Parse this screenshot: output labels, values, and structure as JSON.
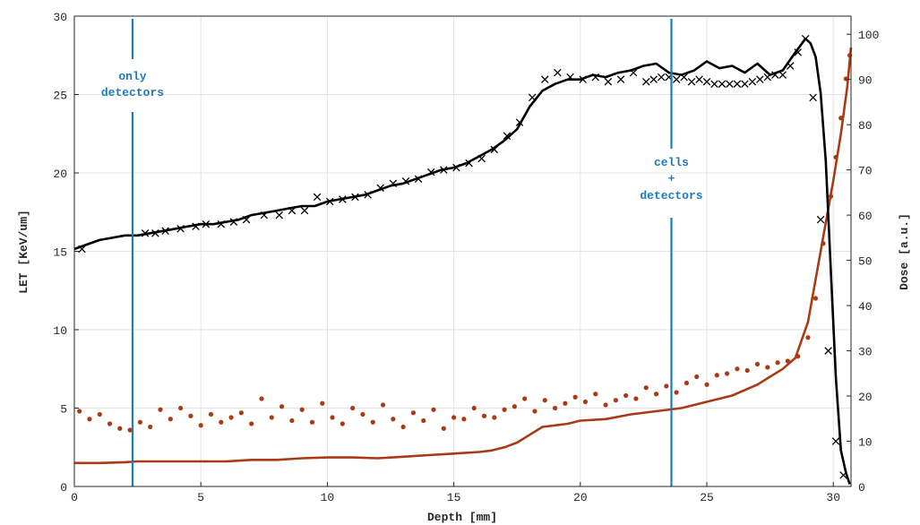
{
  "chart_data": {
    "type": "line",
    "title": "",
    "xlabel": "Depth [mm]",
    "ylabel_left": "LET [KeV/um]",
    "ylabel_right": "Dose [a.u.]",
    "xlim": [
      0,
      30.7
    ],
    "ylim_left": [
      0,
      30
    ],
    "ylim_right": [
      0,
      104
    ],
    "x_ticks": [
      "0",
      "5",
      "10",
      "15",
      "20",
      "25",
      "30"
    ],
    "y_left_ticks": [
      "0",
      "5",
      "10",
      "15",
      "20",
      "25",
      "30"
    ],
    "y_right_ticks": [
      "0",
      "10",
      "20",
      "30",
      "40",
      "50",
      "60",
      "70",
      "80",
      "90",
      "100"
    ],
    "grid": true,
    "annotations": {
      "only_detectors": {
        "lines": [
          "only",
          "detectors"
        ],
        "x": 2.3
      },
      "cells_detectors": {
        "lines": [
          "cells",
          "+",
          "detectors"
        ],
        "x": 23.6
      }
    },
    "series": [
      {
        "axis": "right",
        "style": "line",
        "color": "#000000",
        "x": [
          0,
          0.5,
          1,
          1.5,
          2,
          2.5,
          3,
          3.5,
          4,
          4.5,
          5,
          5.5,
          6,
          6.5,
          7,
          7.5,
          8,
          8.5,
          9,
          9.5,
          10,
          10.5,
          11,
          11.5,
          12,
          12.5,
          13,
          13.5,
          14,
          14.5,
          15,
          15.5,
          16,
          16.5,
          17,
          17.5,
          18,
          18.5,
          19,
          19.5,
          20,
          20.5,
          21,
          21.5,
          22,
          22.5,
          23,
          23.5,
          24,
          24.5,
          25,
          25.5,
          26,
          26.5,
          27,
          27.5,
          28,
          28.5,
          28.9,
          29.1,
          29.3,
          29.5,
          29.7,
          29.9,
          30.1,
          30.3,
          30.5,
          30.65
        ],
        "y": [
          52.5,
          53.5,
          54.5,
          55,
          55.5,
          55.5,
          56,
          56.5,
          57,
          57.5,
          58,
          58,
          58.5,
          59,
          60,
          60.5,
          61,
          61.5,
          62,
          62,
          63,
          63.5,
          64,
          64.5,
          65.5,
          66.5,
          67,
          68,
          69,
          70,
          70.5,
          71.5,
          73,
          74.5,
          76.5,
          79,
          84,
          87.5,
          89,
          90,
          90,
          91,
          90.5,
          91.5,
          92,
          93,
          93.5,
          91.5,
          91,
          92,
          94,
          92.5,
          93,
          91.5,
          93.5,
          91,
          92,
          96,
          99,
          98,
          95,
          87,
          72,
          48,
          24,
          8,
          3,
          0.5
        ]
      },
      {
        "axis": "right",
        "style": "marker-x",
        "color": "#000000",
        "x": [
          0.3,
          2.8,
          3.2,
          3.6,
          4.2,
          4.8,
          5.2,
          5.8,
          6.3,
          6.8,
          7.5,
          8.1,
          8.6,
          9.1,
          9.6,
          10.1,
          10.6,
          11.1,
          11.6,
          12.1,
          12.6,
          13.1,
          13.6,
          14.1,
          14.6,
          15.1,
          15.6,
          16.1,
          16.6,
          17.1,
          17.6,
          18.1,
          18.6,
          19.1,
          19.6,
          20.1,
          20.6,
          21.1,
          21.6,
          22.1,
          22.6,
          22.9,
          23.2,
          23.5,
          23.8,
          24.1,
          24.4,
          24.7,
          25.0,
          25.3,
          25.6,
          25.9,
          26.2,
          26.5,
          26.8,
          27.1,
          27.4,
          27.7,
          28.0,
          28.3,
          28.6,
          28.9,
          29.2,
          29.5,
          29.8,
          30.1,
          30.4
        ],
        "y": [
          52.5,
          56,
          56,
          56.5,
          57,
          57.5,
          58,
          58,
          58.5,
          59,
          60,
          60,
          61,
          61,
          64,
          63,
          63.5,
          64,
          64.5,
          66,
          67,
          67.5,
          68,
          69.5,
          70,
          70.5,
          71.5,
          72.5,
          74.5,
          77.5,
          80.5,
          86,
          90,
          91.5,
          90.5,
          90,
          90.5,
          89.5,
          90,
          91.5,
          89.5,
          90,
          90.5,
          90.5,
          90,
          90.5,
          89.5,
          90,
          89.5,
          89,
          89,
          89,
          89,
          89,
          89.5,
          90,
          90.5,
          91,
          91,
          93,
          96,
          99,
          86,
          59,
          30,
          10,
          2.5
        ]
      },
      {
        "axis": "left",
        "style": "line",
        "color": "#a93a15",
        "x": [
          0,
          1,
          2,
          2.5,
          3,
          4,
          5,
          6,
          7,
          8,
          9,
          10,
          11,
          12,
          13,
          14,
          15,
          16,
          16.5,
          17,
          17.5,
          18,
          18.5,
          19,
          19.5,
          20,
          21,
          22,
          23,
          24,
          25,
          26,
          27,
          27.5,
          28,
          28.5,
          29,
          29.5,
          30,
          30.3,
          30.55,
          30.7
        ],
        "y": [
          1.5,
          1.5,
          1.55,
          1.6,
          1.6,
          1.6,
          1.6,
          1.6,
          1.7,
          1.7,
          1.8,
          1.85,
          1.85,
          1.8,
          1.9,
          2.0,
          2.1,
          2.2,
          2.3,
          2.5,
          2.8,
          3.3,
          3.8,
          3.9,
          4.0,
          4.2,
          4.3,
          4.6,
          4.8,
          5.0,
          5.4,
          5.8,
          6.5,
          7.0,
          7.5,
          8.2,
          10.5,
          15.0,
          19.5,
          22.5,
          25.5,
          28.0
        ]
      },
      {
        "axis": "left",
        "style": "marker-dot",
        "color": "#a93a15",
        "x": [
          0.2,
          0.6,
          1.0,
          1.4,
          1.8,
          2.2,
          2.6,
          3.0,
          3.4,
          3.8,
          4.2,
          4.6,
          5.0,
          5.4,
          5.8,
          6.2,
          6.6,
          7.0,
          7.4,
          7.8,
          8.2,
          8.6,
          9.0,
          9.4,
          9.8,
          10.2,
          10.6,
          11.0,
          11.4,
          11.8,
          12.2,
          12.6,
          13.0,
          13.4,
          13.8,
          14.2,
          14.6,
          15.0,
          15.4,
          15.8,
          16.2,
          16.6,
          17.0,
          17.4,
          17.8,
          18.2,
          18.6,
          19.0,
          19.4,
          19.8,
          20.2,
          20.6,
          21.0,
          21.4,
          21.8,
          22.2,
          22.6,
          23.0,
          23.4,
          23.8,
          24.2,
          24.6,
          25.0,
          25.4,
          25.8,
          26.2,
          26.6,
          27.0,
          27.4,
          27.8,
          28.2,
          28.6,
          29.0,
          29.3,
          29.6,
          29.9,
          30.1,
          30.3,
          30.5,
          30.65
        ],
        "y": [
          4.8,
          4.3,
          4.6,
          4.0,
          3.7,
          3.6,
          4.1,
          3.8,
          4.9,
          4.3,
          5.0,
          4.5,
          3.9,
          4.6,
          4.1,
          4.4,
          4.7,
          4.0,
          5.6,
          4.4,
          5.1,
          4.2,
          4.9,
          4.1,
          5.3,
          4.4,
          4.0,
          5.0,
          4.6,
          4.1,
          5.2,
          4.3,
          3.8,
          4.7,
          4.2,
          4.9,
          3.7,
          4.4,
          4.3,
          5.0,
          4.5,
          4.4,
          4.9,
          5.1,
          5.6,
          4.8,
          5.5,
          5.0,
          5.3,
          5.7,
          5.4,
          5.9,
          5.2,
          5.5,
          5.8,
          5.6,
          6.3,
          5.9,
          6.4,
          6.0,
          6.6,
          7.0,
          6.5,
          7.1,
          7.2,
          7.5,
          7.4,
          7.8,
          7.6,
          7.9,
          8.0,
          8.3,
          9.5,
          12.0,
          15.5,
          18.5,
          21.0,
          23.5,
          26.0,
          27.5
        ]
      }
    ]
  }
}
